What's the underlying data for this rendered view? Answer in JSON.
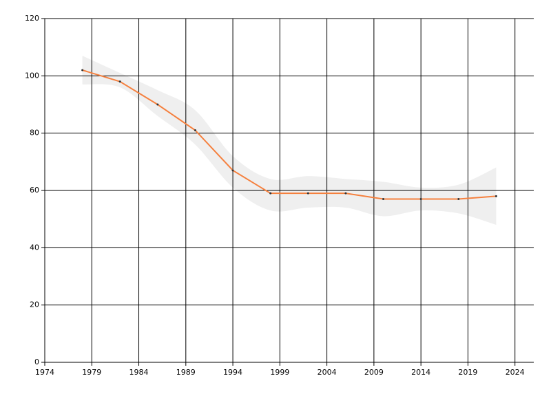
{
  "chart_data": {
    "type": "line",
    "x": [
      1978,
      1982,
      1986,
      1990,
      1994,
      1998,
      2002,
      2006,
      2010,
      2014,
      2018,
      2022
    ],
    "series": [
      {
        "color": "#f5803e",
        "values": [
          102,
          98,
          90,
          81,
          67,
          59,
          59,
          59,
          57,
          57,
          57,
          58
        ]
      }
    ],
    "band": {
      "color": "#efefef",
      "upper": [
        107,
        101,
        95,
        88,
        72,
        64,
        65,
        64,
        63,
        61,
        62,
        68
      ],
      "lower": [
        97,
        96,
        86,
        76,
        61,
        53,
        54,
        54,
        51,
        53,
        52,
        48
      ]
    },
    "xlim": [
      1974,
      2026
    ],
    "xticks": [
      1974,
      1979,
      1984,
      1989,
      1994,
      1999,
      2004,
      2009,
      2014,
      2019,
      2024
    ],
    "ylim": [
      0,
      120
    ],
    "yticks": [
      0,
      20,
      40,
      60,
      80,
      100,
      120
    ],
    "grid": true
  }
}
